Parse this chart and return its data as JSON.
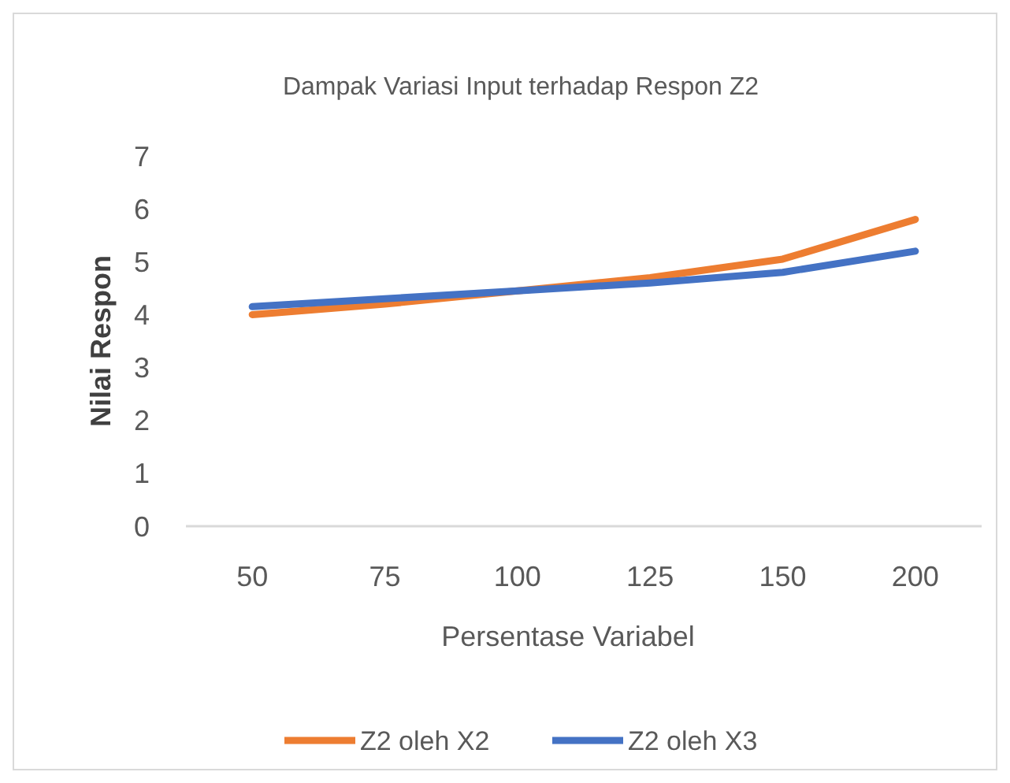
{
  "chart_data": {
    "type": "line",
    "title": "Dampak Variasi Input terhadap Respon Z2",
    "xlabel": "Persentase Variabel",
    "ylabel": "Nilai Respon",
    "categories": [
      "50",
      "75",
      "100",
      "125",
      "150",
      "200"
    ],
    "series": [
      {
        "name": "Z2 oleh X2",
        "color": "#ed7d31",
        "values": [
          4.0,
          4.2,
          4.45,
          4.7,
          5.05,
          5.8
        ]
      },
      {
        "name": "Z2 oleh X3",
        "color": "#4472c4",
        "values": [
          4.15,
          4.3,
          4.45,
          4.6,
          4.8,
          5.2
        ]
      }
    ],
    "ylim": [
      0,
      7
    ],
    "yticks": [
      0,
      1,
      2,
      3,
      4,
      5,
      6,
      7
    ],
    "grid": false,
    "legend": "bottom",
    "marker": "none",
    "line_style": "solid"
  }
}
